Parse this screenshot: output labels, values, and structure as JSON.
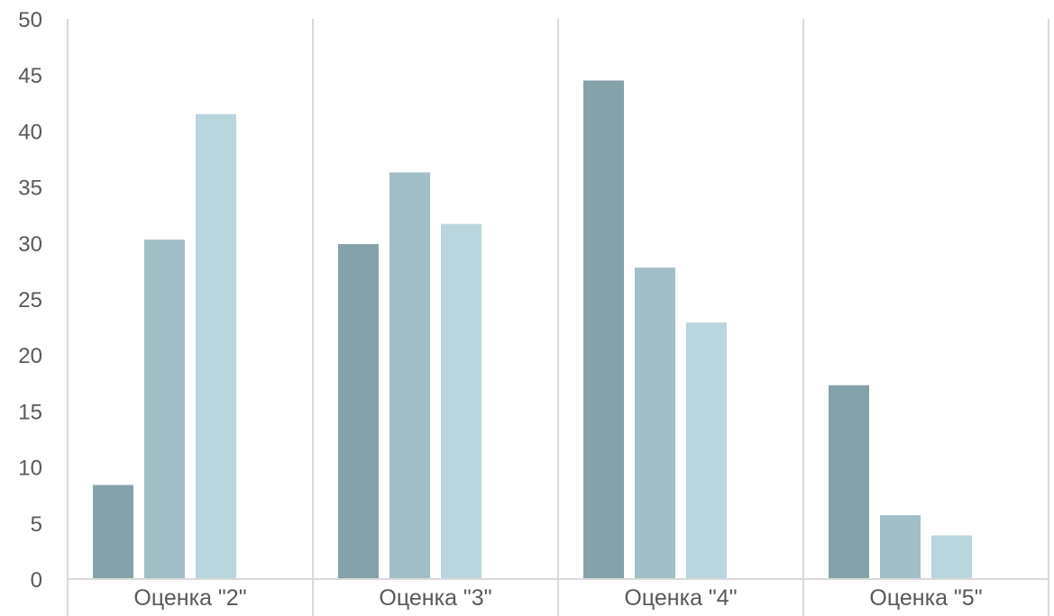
{
  "chart_data": {
    "type": "bar",
    "title": "",
    "xlabel": "",
    "ylabel": "",
    "categories": [
      "Оценка \"2\"",
      "Оценка \"3\"",
      "Оценка \"4\"",
      "Оценка \"5\""
    ],
    "series": [
      {
        "values": [
          8.4,
          29.9,
          44.5,
          17.3
        ],
        "color": "#84a2a9"
      },
      {
        "values": [
          30.3,
          36.3,
          27.8,
          5.7
        ],
        "color": "#a0bfc7"
      },
      {
        "values": [
          41.5,
          31.7,
          22.9,
          3.9
        ],
        "color": "#b9d5dd"
      }
    ],
    "ylim": [
      0,
      50
    ],
    "yticks": [
      0,
      5,
      10,
      15,
      20,
      25,
      30,
      35,
      40,
      45,
      50
    ],
    "grid": "vertical category separators",
    "legend": "none"
  }
}
